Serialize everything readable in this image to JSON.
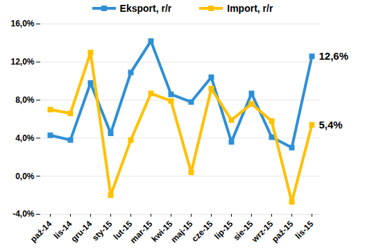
{
  "chart_data": {
    "type": "line",
    "categories": [
      "paź-14",
      "lis-14",
      "gru-14",
      "sty-15",
      "lut-15",
      "mar-15",
      "kwi-15",
      "maj-15",
      "cze-15",
      "lip-15",
      "sie-15",
      "wrz-15",
      "paź-15",
      "lis-15"
    ],
    "series": [
      {
        "name": "Eksport, r/r",
        "color": "#2e8fd6",
        "marker": "square",
        "values": [
          4.3,
          3.8,
          9.8,
          4.5,
          10.9,
          14.2,
          8.6,
          7.8,
          10.4,
          3.6,
          8.7,
          4.1,
          3.0,
          12.6
        ]
      },
      {
        "name": "Import, r/r",
        "color": "#ffc000",
        "marker": "square",
        "values": [
          7.0,
          6.6,
          13.0,
          -2.0,
          3.8,
          8.7,
          7.9,
          0.4,
          9.2,
          5.9,
          7.6,
          5.8,
          -2.7,
          5.4
        ]
      }
    ],
    "ylim": [
      -4,
      16
    ],
    "yticks": [
      {
        "value": -4,
        "label": "-4,0%"
      },
      {
        "value": 0,
        "label": "0,0%"
      },
      {
        "value": 4,
        "label": "4,0%"
      },
      {
        "value": 8,
        "label": "8,0%"
      },
      {
        "value": 12,
        "label": "12,0%"
      },
      {
        "value": 16,
        "label": "16,0%"
      }
    ],
    "grid": true,
    "legend": "top",
    "annotations": [
      {
        "text": "12,6%",
        "x": "lis-15",
        "y": 12.6
      },
      {
        "text": "5,4%",
        "x": "lis-15",
        "y": 5.4
      }
    ]
  }
}
